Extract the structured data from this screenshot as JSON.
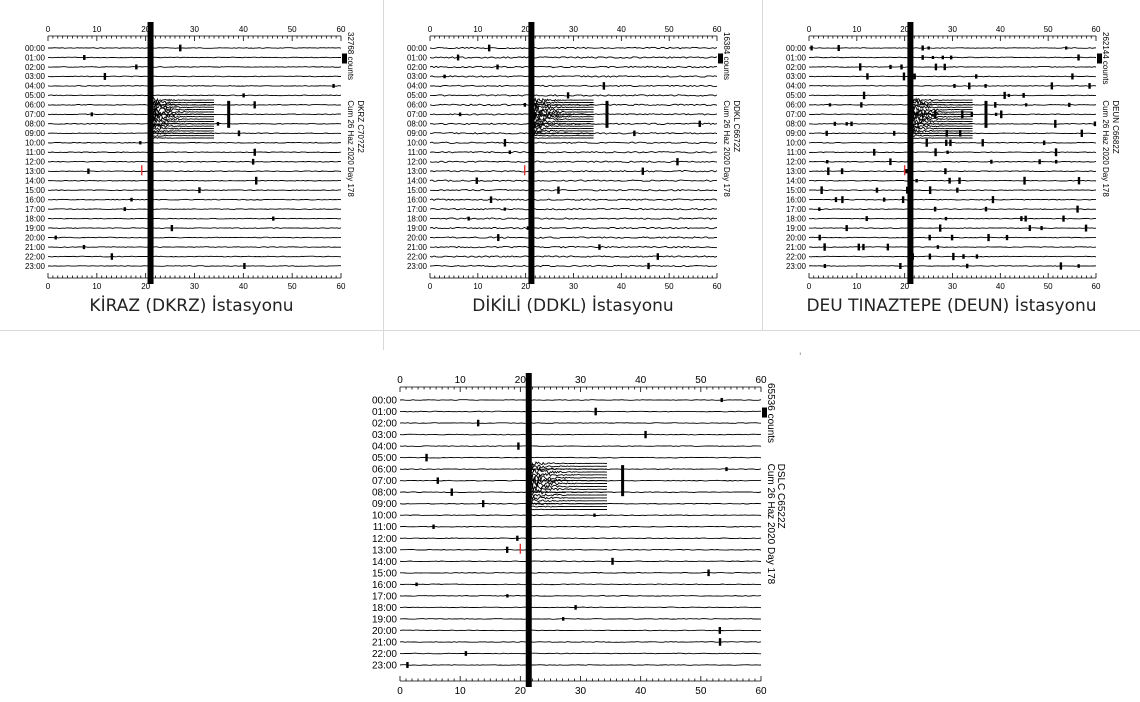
{
  "stations": [
    {
      "caption": "KİRAZ (DKRZ) İstasyonu",
      "counts": "32768 counts",
      "date": "Cum 26 Haz 2020   Day 178",
      "channel": "DKRZ C70?Z2",
      "quake_min": 21,
      "aftershock_min": 37,
      "red_min": 19.2,
      "red_hour": 13
    },
    {
      "caption": "DİKİLİ (DDKL) İstasyonu",
      "counts": "16384 counts",
      "date": "Cum 26 Haz 2020   Day 178",
      "channel": "DDKL C6672Z",
      "quake_min": 21.2,
      "aftershock_min": 37,
      "red_min": 19.8,
      "red_hour": 13
    },
    {
      "caption": "DEU TINAZTEPE (DEUN) İstasyonu",
      "counts": "262144 counts",
      "date": "Cum 26 Haz 2020   Day 178",
      "channel": "DEUN C6682Z",
      "quake_min": 21.2,
      "aftershock_min": 37,
      "red_min": 20,
      "red_hour": 13
    },
    {
      "caption": "",
      "counts": "65536 counts",
      "date": "Cum 26 Haz 2020   Day 178",
      "channel": "DSLC C6522Z",
      "quake_min": 21.4,
      "aftershock_min": 37,
      "red_min": 20,
      "red_hour": 13
    }
  ],
  "axis": {
    "x_ticks": [
      0,
      10,
      20,
      30,
      40,
      50,
      60
    ],
    "hours": [
      "00:00",
      "01:00",
      "02:00",
      "03:00",
      "04:00",
      "05:00",
      "06:00",
      "07:00",
      "08:00",
      "09:00",
      "10:00",
      "11:00",
      "12:00",
      "13:00",
      "14:00",
      "15:00",
      "16:00",
      "17:00",
      "18:00",
      "19:00",
      "20:00",
      "21:00",
      "22:00",
      "23:00"
    ]
  },
  "stray_mark": "'"
}
